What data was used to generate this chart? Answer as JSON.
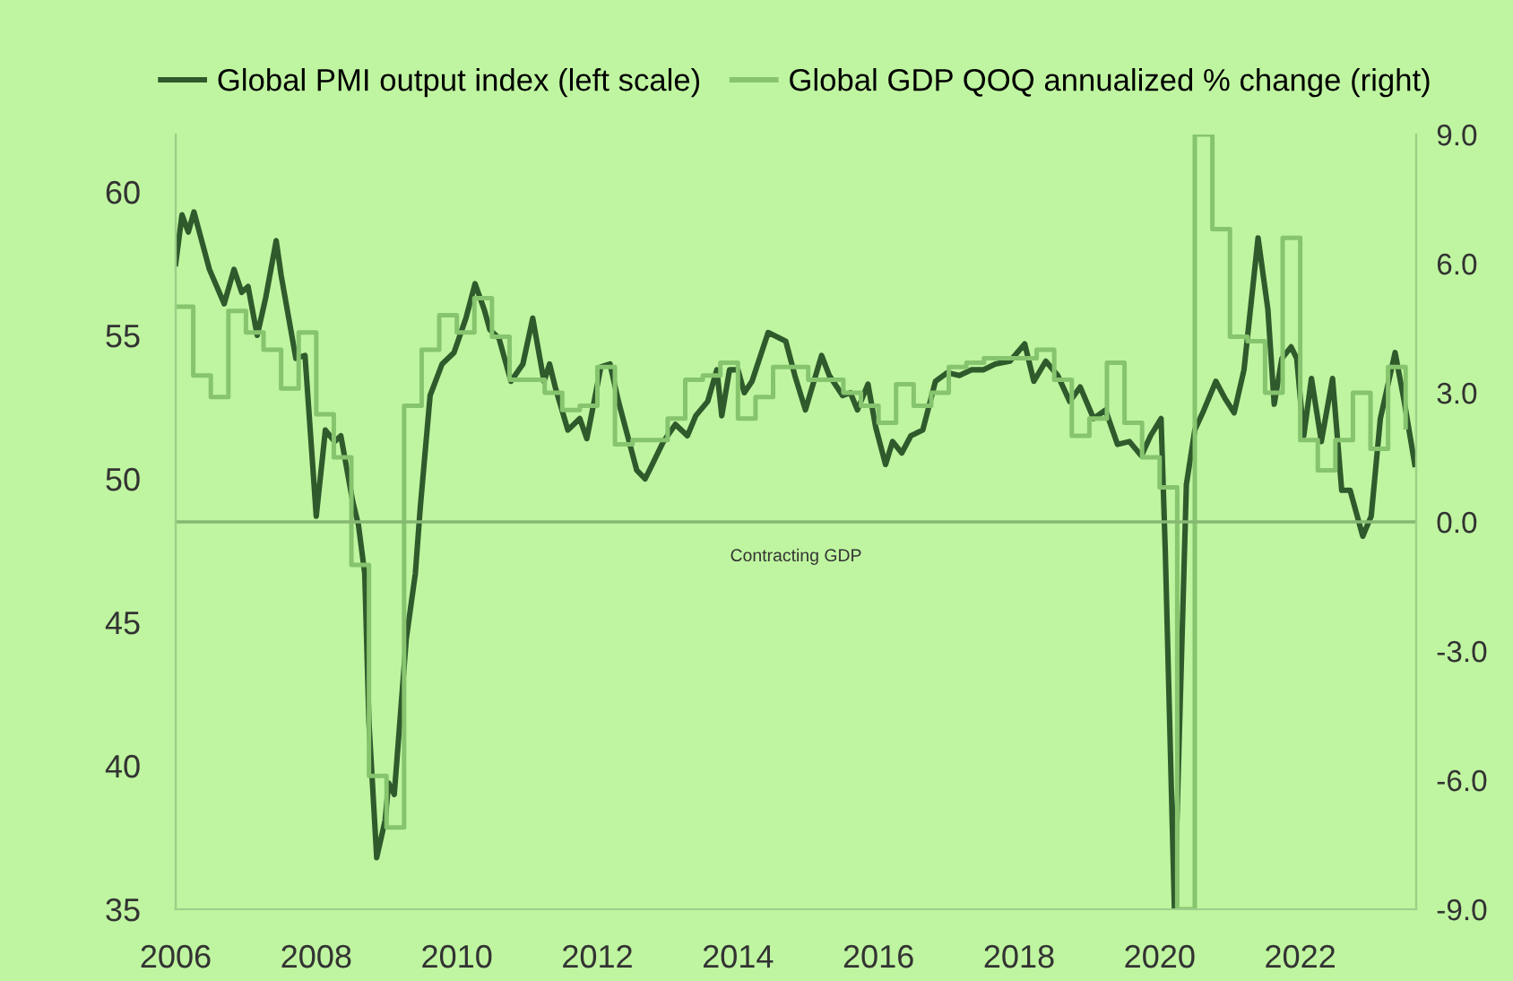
{
  "chart_data": {
    "type": "line",
    "series": [
      {
        "name": "Global PMI output index (left scale)",
        "color": "#2f5a2c",
        "x": [
          2006.0,
          2006.09,
          2006.18,
          2006.26,
          2006.48,
          2006.69,
          2006.83,
          2006.94,
          2007.03,
          2007.16,
          2007.28,
          2007.43,
          2007.5,
          2007.71,
          2007.84,
          2008.0,
          2008.13,
          2008.26,
          2008.35,
          2008.52,
          2008.6,
          2008.69,
          2008.75,
          2008.86,
          2008.98,
          2009.03,
          2009.11,
          2009.28,
          2009.41,
          2009.48,
          2009.62,
          2009.79,
          2009.96,
          2010.13,
          2010.26,
          2010.39,
          2010.47,
          2010.6,
          2010.77,
          2010.94,
          2011.08,
          2011.24,
          2011.32,
          2011.4,
          2011.58,
          2011.75,
          2011.85,
          2012.05,
          2012.18,
          2012.3,
          2012.43,
          2012.56,
          2012.68,
          2012.8,
          2012.94,
          2013.11,
          2013.28,
          2013.4,
          2013.57,
          2013.7,
          2013.77,
          2013.88,
          2014.0,
          2014.09,
          2014.2,
          2014.43,
          2014.68,
          2014.81,
          2014.96,
          2015.19,
          2015.3,
          2015.49,
          2015.6,
          2015.7,
          2015.85,
          2015.96,
          2016.1,
          2016.2,
          2016.33,
          2016.46,
          2016.63,
          2016.81,
          2016.98,
          2017.15,
          2017.32,
          2017.49,
          2017.66,
          2017.87,
          2018.08,
          2018.21,
          2018.38,
          2018.55,
          2018.72,
          2018.87,
          2019.06,
          2019.23,
          2019.4,
          2019.57,
          2019.74,
          2019.87,
          2020.02,
          2020.08,
          2020.21,
          2020.38,
          2020.5,
          2020.63,
          2020.8,
          2020.93,
          2021.06,
          2021.2,
          2021.4,
          2021.54,
          2021.63,
          2021.74,
          2021.87,
          2021.95,
          2022.05,
          2022.16,
          2022.3,
          2022.46,
          2022.59,
          2022.71,
          2022.89,
          2023.01,
          2023.14,
          2023.35,
          2023.48,
          2023.63
        ],
        "values": [
          57.5,
          59.2,
          58.6,
          59.3,
          57.3,
          56.1,
          57.3,
          56.5,
          56.7,
          55.0,
          56.3,
          58.3,
          57.1,
          54.2,
          54.3,
          48.7,
          51.7,
          51.3,
          51.5,
          49.2,
          48.4,
          46.7,
          41.5,
          36.8,
          38.1,
          39.4,
          39.0,
          44.4,
          46.7,
          49.0,
          52.9,
          54.0,
          54.4,
          55.6,
          56.8,
          55.9,
          55.2,
          54.9,
          53.4,
          54.0,
          55.6,
          53.4,
          54.0,
          53.2,
          51.7,
          52.1,
          51.4,
          53.9,
          54.0,
          52.7,
          51.5,
          50.3,
          50.0,
          50.6,
          51.3,
          51.9,
          51.5,
          52.2,
          52.7,
          53.8,
          52.2,
          53.8,
          53.8,
          53.0,
          53.4,
          55.1,
          54.8,
          53.6,
          52.4,
          54.3,
          53.6,
          52.9,
          53.0,
          52.4,
          53.3,
          51.8,
          50.5,
          51.3,
          50.9,
          51.5,
          51.7,
          53.4,
          53.7,
          53.6,
          53.8,
          53.8,
          54.0,
          54.1,
          54.7,
          53.4,
          54.1,
          53.6,
          52.7,
          53.2,
          52.1,
          52.4,
          51.2,
          51.3,
          50.8,
          51.5,
          52.1,
          47.5,
          35.0,
          49.8,
          51.7,
          52.4,
          53.4,
          52.8,
          52.3,
          53.8,
          58.4,
          55.9,
          52.6,
          54.2,
          54.6,
          54.2,
          51.5,
          53.5,
          51.3,
          53.5,
          49.6,
          49.6,
          48.0,
          48.7,
          52.1,
          54.4,
          52.7,
          50.5
        ]
      },
      {
        "name": "Global GDP QOQ annualized % change (right)",
        "color": "#86c46e",
        "type": "step",
        "axis": "y2",
        "x": [
          2006.0,
          2006.25,
          2006.5,
          2006.75,
          2007.0,
          2007.25,
          2007.5,
          2007.75,
          2008.0,
          2008.25,
          2008.5,
          2008.75,
          2009.0,
          2009.25,
          2009.5,
          2009.75,
          2010.0,
          2010.25,
          2010.5,
          2010.75,
          2011.0,
          2011.25,
          2011.5,
          2011.75,
          2012.0,
          2012.25,
          2012.5,
          2012.75,
          2013.0,
          2013.25,
          2013.5,
          2013.75,
          2014.0,
          2014.25,
          2014.5,
          2014.75,
          2015.0,
          2015.25,
          2015.5,
          2015.75,
          2016.0,
          2016.25,
          2016.5,
          2016.75,
          2017.0,
          2017.25,
          2017.5,
          2017.75,
          2018.0,
          2018.25,
          2018.5,
          2018.75,
          2019.0,
          2019.25,
          2019.5,
          2019.75,
          2020.0,
          2020.25,
          2020.5,
          2020.75,
          2021.0,
          2021.25,
          2021.5,
          2021.75,
          2022.0,
          2022.25,
          2022.5,
          2022.75,
          2023.0,
          2023.25,
          2023.5
        ],
        "values": [
          5.0,
          3.4,
          2.9,
          4.9,
          4.4,
          4.0,
          3.1,
          4.4,
          2.5,
          1.5,
          -1.0,
          -5.9,
          -7.1,
          2.7,
          4.0,
          4.8,
          4.4,
          5.2,
          4.3,
          3.3,
          3.3,
          3.0,
          2.6,
          2.7,
          3.6,
          1.8,
          1.9,
          1.9,
          2.4,
          3.3,
          3.4,
          3.7,
          2.4,
          2.9,
          3.6,
          3.6,
          3.3,
          3.3,
          3.0,
          2.7,
          2.3,
          3.2,
          2.7,
          3.0,
          3.6,
          3.7,
          3.8,
          3.8,
          3.8,
          4.0,
          3.3,
          2.0,
          2.4,
          3.7,
          2.3,
          1.5,
          0.8,
          -9.0,
          9.0,
          6.8,
          4.3,
          4.2,
          3.0,
          6.6,
          1.9,
          1.2,
          1.9,
          3.0,
          1.7,
          3.6,
          2.2
        ]
      }
    ],
    "xlim": [
      2006,
      2023.65
    ],
    "xticks": [
      2006,
      2008,
      2010,
      2012,
      2014,
      2016,
      2018,
      2020,
      2022
    ],
    "ylim": [
      35,
      62
    ],
    "yticks": [
      35,
      40,
      45,
      50,
      55,
      60
    ],
    "y2lim": [
      -9,
      9
    ],
    "y2ticks": [
      {
        "value": 9,
        "label": "9.0"
      },
      {
        "value": 6,
        "label": "6.0"
      },
      {
        "value": 3,
        "label": "3.0"
      },
      {
        "value": 0,
        "label": "0.0"
      },
      {
        "value": -3,
        "label": "-3.0"
      },
      {
        "value": -6,
        "label": "-6.0"
      },
      {
        "value": -9,
        "label": "-9.0"
      }
    ],
    "ref_lines": [
      {
        "axis": "y2",
        "value": 0,
        "label": "Contracting GDP",
        "color": "#86b874"
      }
    ],
    "legend": "top",
    "grid": false
  }
}
